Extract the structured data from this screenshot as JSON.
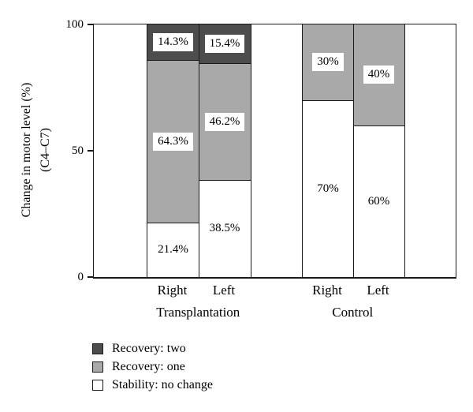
{
  "figure": {
    "ylabel_line1": "Change in motor level (%)",
    "ylabel_line2": "(C4–C7)"
  },
  "chart_data": {
    "type": "bar",
    "stacked": true,
    "orientation": "vertical",
    "title": "",
    "ylabel": "Change in motor level (%) (C4–C7)",
    "ylim": [
      0,
      100
    ],
    "yticks": [
      "0",
      "50",
      "100"
    ],
    "grid": false,
    "legend_position": "bottom-left",
    "series_colors": {
      "Recovery: two": "#4d4d4d",
      "Recovery: one": "#a9a9a9",
      "Stability: no change": "#ffffff"
    },
    "groups": [
      {
        "label": "Transplantation",
        "bars": [
          {
            "label": "Right",
            "segments": [
              {
                "series": "Stability: no change",
                "value": 21.4,
                "text": "21.4%",
                "boxed": false
              },
              {
                "series": "Recovery: one",
                "value": 64.3,
                "text": "64.3%",
                "boxed": true
              },
              {
                "series": "Recovery: two",
                "value": 14.3,
                "text": "14.3%",
                "boxed": true
              }
            ]
          },
          {
            "label": "Left",
            "segments": [
              {
                "series": "Stability: no change",
                "value": 38.5,
                "text": "38.5%",
                "boxed": false
              },
              {
                "series": "Recovery: one",
                "value": 46.2,
                "text": "46.2%",
                "boxed": true
              },
              {
                "series": "Recovery: two",
                "value": 15.4,
                "text": "15.4%",
                "boxed": true
              }
            ]
          }
        ]
      },
      {
        "label": "Control",
        "bars": [
          {
            "label": "Right",
            "segments": [
              {
                "series": "Stability: no change",
                "value": 70,
                "text": "70%",
                "boxed": false
              },
              {
                "series": "Recovery: one",
                "value": 30,
                "text": "30%",
                "boxed": true
              }
            ]
          },
          {
            "label": "Left",
            "segments": [
              {
                "series": "Stability: no change",
                "value": 60,
                "text": "60%",
                "boxed": false
              },
              {
                "series": "Recovery: one",
                "value": 40,
                "text": "40%",
                "boxed": true
              }
            ]
          }
        ]
      }
    ],
    "legend": [
      {
        "label": "Recovery: two",
        "color": "#4d4d4d"
      },
      {
        "label": "Recovery: one",
        "color": "#a9a9a9"
      },
      {
        "label": "Stability: no change",
        "color": "#ffffff"
      }
    ]
  }
}
